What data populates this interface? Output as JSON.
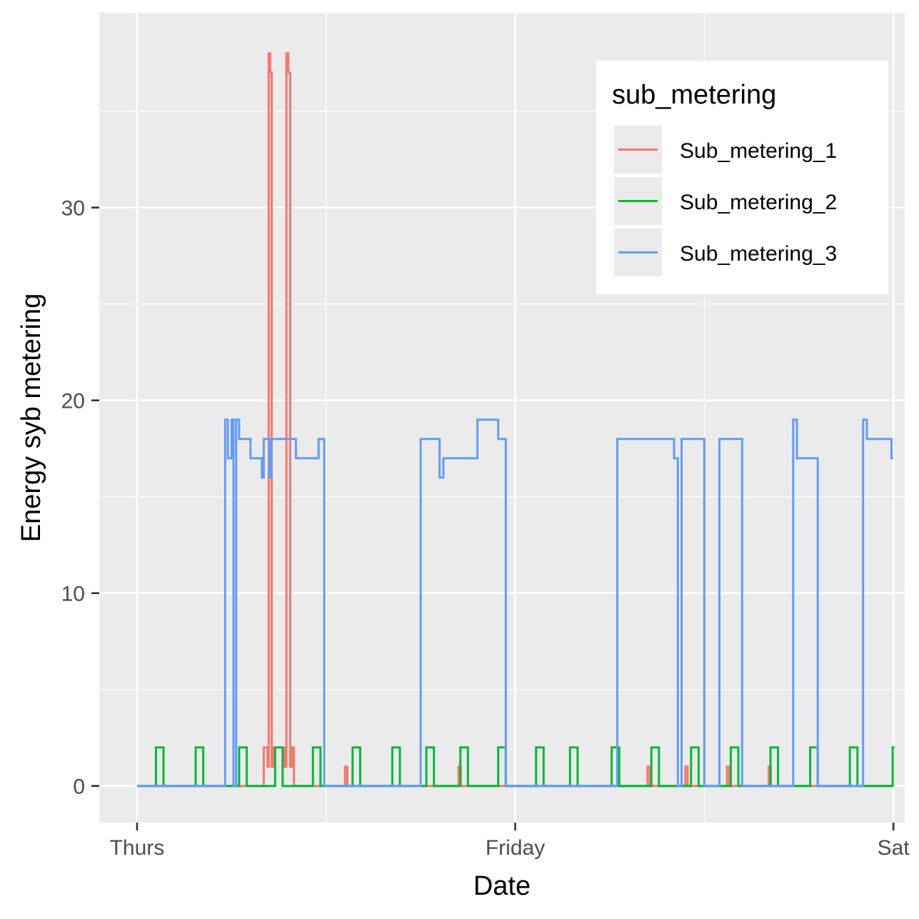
{
  "chart_data": {
    "type": "line",
    "title": "",
    "xlabel": "Date",
    "ylabel": "Energy syb metering",
    "x_ticks": [
      {
        "label": "Thurs",
        "value": 0
      },
      {
        "label": "Friday",
        "value": 1
      },
      {
        "label": "Sat",
        "value": 2
      }
    ],
    "y_ticks": [
      0,
      10,
      20,
      30
    ],
    "xlim": [
      -0.1,
      2.03
    ],
    "ylim": [
      -1.9,
      40.1
    ],
    "grid": true,
    "legend": {
      "title": "sub_metering",
      "position": "top-right"
    },
    "colors": {
      "Sub_metering_1": "#f8766d",
      "Sub_metering_2": "#00ba38",
      "Sub_metering_3": "#619cff",
      "panel_background": "#ebebeb",
      "grid": "#ffffff",
      "tick_mark": "#333333"
    },
    "series": [
      {
        "name": "Sub_metering_1",
        "points": [
          [
            0,
            0
          ],
          [
            0.335,
            0
          ],
          [
            0.335,
            2
          ],
          [
            0.345,
            2
          ],
          [
            0.345,
            1
          ],
          [
            0.348,
            1
          ],
          [
            0.348,
            38
          ],
          [
            0.352,
            38
          ],
          [
            0.352,
            37
          ],
          [
            0.356,
            37
          ],
          [
            0.356,
            1
          ],
          [
            0.36,
            1
          ],
          [
            0.36,
            2
          ],
          [
            0.39,
            2
          ],
          [
            0.39,
            1
          ],
          [
            0.395,
            1
          ],
          [
            0.395,
            38
          ],
          [
            0.4,
            38
          ],
          [
            0.4,
            37
          ],
          [
            0.405,
            37
          ],
          [
            0.405,
            1
          ],
          [
            0.41,
            1
          ],
          [
            0.41,
            2
          ],
          [
            0.415,
            2
          ],
          [
            0.415,
            0
          ],
          [
            0.55,
            0
          ],
          [
            0.55,
            1
          ],
          [
            0.556,
            1
          ],
          [
            0.556,
            0
          ],
          [
            0.85,
            0
          ],
          [
            0.85,
            1
          ],
          [
            0.856,
            1
          ],
          [
            0.856,
            0
          ],
          [
            1.35,
            0
          ],
          [
            1.35,
            1
          ],
          [
            1.356,
            1
          ],
          [
            1.356,
            0
          ],
          [
            1.45,
            0
          ],
          [
            1.45,
            1
          ],
          [
            1.456,
            1
          ],
          [
            1.456,
            0
          ],
          [
            1.56,
            0
          ],
          [
            1.56,
            1
          ],
          [
            1.566,
            1
          ],
          [
            1.566,
            0
          ],
          [
            1.67,
            0
          ],
          [
            1.67,
            1
          ],
          [
            1.676,
            1
          ],
          [
            1.676,
            0
          ],
          [
            2,
            0
          ]
        ]
      },
      {
        "name": "Sub_metering_2",
        "points": [
          [
            0,
            0
          ],
          [
            0.05,
            0
          ],
          [
            0.05,
            2
          ],
          [
            0.07,
            2
          ],
          [
            0.07,
            0
          ],
          [
            0.155,
            0
          ],
          [
            0.155,
            2
          ],
          [
            0.175,
            2
          ],
          [
            0.175,
            0
          ],
          [
            0.27,
            0
          ],
          [
            0.27,
            2
          ],
          [
            0.29,
            2
          ],
          [
            0.29,
            0
          ],
          [
            0.365,
            0
          ],
          [
            0.365,
            2
          ],
          [
            0.385,
            2
          ],
          [
            0.385,
            0
          ],
          [
            0.465,
            0
          ],
          [
            0.465,
            2
          ],
          [
            0.485,
            2
          ],
          [
            0.485,
            0
          ],
          [
            0.57,
            0
          ],
          [
            0.57,
            2
          ],
          [
            0.59,
            2
          ],
          [
            0.59,
            0
          ],
          [
            0.675,
            0
          ],
          [
            0.675,
            2
          ],
          [
            0.695,
            2
          ],
          [
            0.695,
            0
          ],
          [
            0.765,
            0
          ],
          [
            0.765,
            2
          ],
          [
            0.785,
            2
          ],
          [
            0.785,
            0
          ],
          [
            0.855,
            0
          ],
          [
            0.855,
            2
          ],
          [
            0.875,
            2
          ],
          [
            0.875,
            0
          ],
          [
            0.955,
            0
          ],
          [
            0.955,
            2
          ],
          [
            0.975,
            2
          ],
          [
            0.975,
            0
          ],
          [
            1.055,
            0
          ],
          [
            1.055,
            2
          ],
          [
            1.075,
            2
          ],
          [
            1.075,
            0
          ],
          [
            1.145,
            0
          ],
          [
            1.145,
            2
          ],
          [
            1.165,
            2
          ],
          [
            1.165,
            0
          ],
          [
            1.255,
            0
          ],
          [
            1.255,
            2
          ],
          [
            1.275,
            2
          ],
          [
            1.275,
            0
          ],
          [
            1.36,
            0
          ],
          [
            1.36,
            2
          ],
          [
            1.38,
            2
          ],
          [
            1.38,
            0
          ],
          [
            1.465,
            0
          ],
          [
            1.465,
            2
          ],
          [
            1.485,
            2
          ],
          [
            1.485,
            0
          ],
          [
            1.57,
            0
          ],
          [
            1.57,
            2
          ],
          [
            1.59,
            2
          ],
          [
            1.59,
            0
          ],
          [
            1.675,
            0
          ],
          [
            1.675,
            2
          ],
          [
            1.695,
            2
          ],
          [
            1.695,
            0
          ],
          [
            1.78,
            0
          ],
          [
            1.78,
            2
          ],
          [
            1.8,
            2
          ],
          [
            1.8,
            0
          ],
          [
            1.885,
            0
          ],
          [
            1.885,
            2
          ],
          [
            1.905,
            2
          ],
          [
            1.905,
            0
          ],
          [
            1.998,
            0
          ],
          [
            1.998,
            2
          ],
          [
            2.003,
            2
          ]
        ]
      },
      {
        "name": "Sub_metering_3",
        "points": [
          [
            0,
            0
          ],
          [
            0.233,
            0
          ],
          [
            0.233,
            19
          ],
          [
            0.24,
            19
          ],
          [
            0.24,
            17
          ],
          [
            0.25,
            17
          ],
          [
            0.25,
            19
          ],
          [
            0.255,
            19
          ],
          [
            0.255,
            0
          ],
          [
            0.262,
            0
          ],
          [
            0.262,
            19
          ],
          [
            0.27,
            19
          ],
          [
            0.27,
            18
          ],
          [
            0.3,
            18
          ],
          [
            0.3,
            17
          ],
          [
            0.33,
            17
          ],
          [
            0.33,
            16
          ],
          [
            0.335,
            16
          ],
          [
            0.335,
            18
          ],
          [
            0.35,
            18
          ],
          [
            0.35,
            16
          ],
          [
            0.355,
            16
          ],
          [
            0.355,
            18
          ],
          [
            0.42,
            18
          ],
          [
            0.42,
            17
          ],
          [
            0.48,
            17
          ],
          [
            0.48,
            18
          ],
          [
            0.495,
            18
          ],
          [
            0.495,
            0
          ],
          [
            0.75,
            0
          ],
          [
            0.75,
            18
          ],
          [
            0.8,
            18
          ],
          [
            0.8,
            16
          ],
          [
            0.81,
            16
          ],
          [
            0.81,
            17
          ],
          [
            0.9,
            17
          ],
          [
            0.9,
            19
          ],
          [
            0.955,
            19
          ],
          [
            0.955,
            18
          ],
          [
            0.975,
            18
          ],
          [
            0.975,
            0
          ],
          [
            1.27,
            0
          ],
          [
            1.27,
            18
          ],
          [
            1.42,
            18
          ],
          [
            1.42,
            17
          ],
          [
            1.43,
            17
          ],
          [
            1.43,
            0
          ],
          [
            1.44,
            0
          ],
          [
            1.44,
            18
          ],
          [
            1.5,
            18
          ],
          [
            1.5,
            0
          ],
          [
            1.54,
            0
          ],
          [
            1.54,
            18
          ],
          [
            1.6,
            18
          ],
          [
            1.6,
            0
          ],
          [
            1.735,
            0
          ],
          [
            1.735,
            19
          ],
          [
            1.745,
            19
          ],
          [
            1.745,
            17
          ],
          [
            1.8,
            17
          ],
          [
            1.8,
            0
          ],
          [
            1.92,
            0
          ],
          [
            1.92,
            19
          ],
          [
            1.93,
            19
          ],
          [
            1.93,
            18
          ],
          [
            1.995,
            18
          ],
          [
            1.995,
            17
          ],
          [
            2,
            17
          ]
        ]
      }
    ]
  }
}
